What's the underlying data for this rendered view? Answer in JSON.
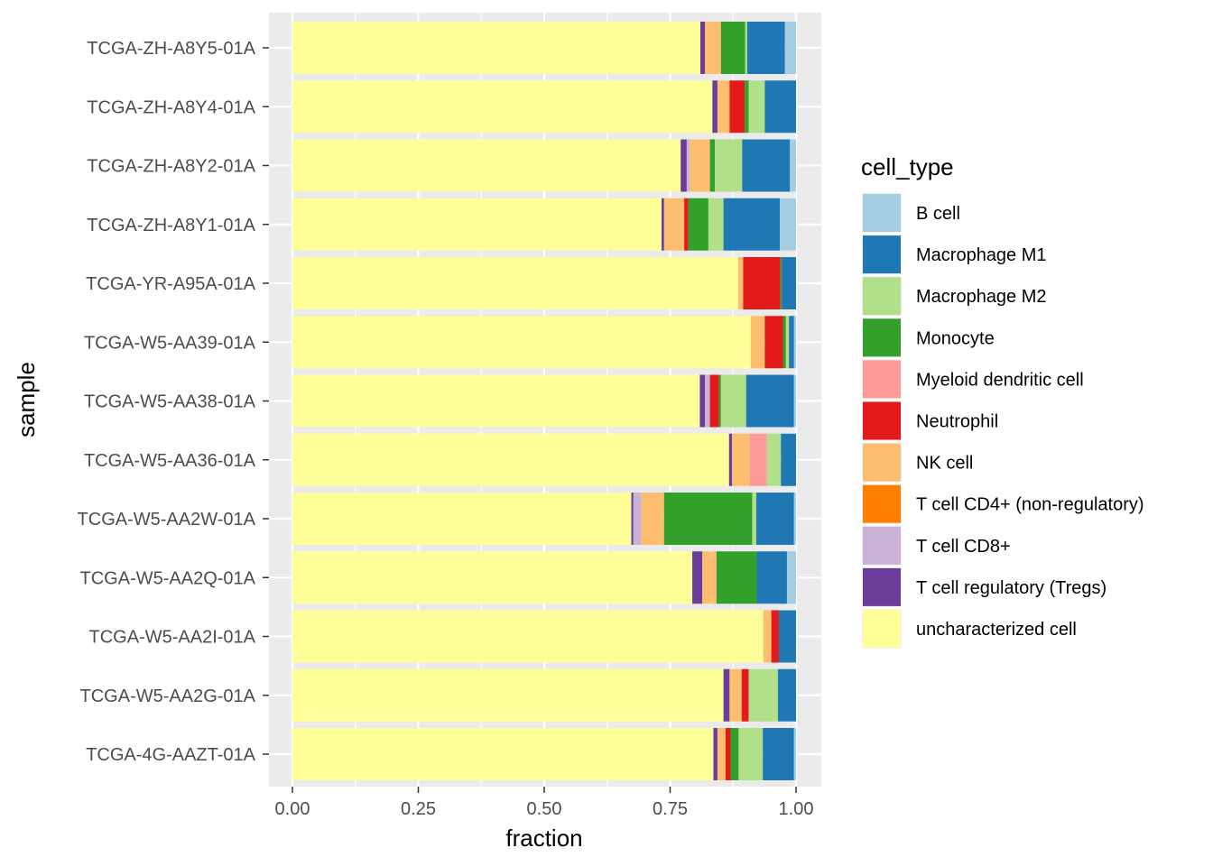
{
  "chart_data": {
    "type": "bar",
    "orientation": "horizontal",
    "stacked": true,
    "xlabel": "fraction",
    "ylabel": "sample",
    "xlim": [
      0,
      1
    ],
    "x_ticks": [
      "0.00",
      "0.25",
      "0.50",
      "0.75",
      "1.00"
    ],
    "grid": true,
    "legend_title": "cell_type",
    "legend_position": "right",
    "categories": [
      "TCGA-ZH-A8Y5-01A",
      "TCGA-ZH-A8Y4-01A",
      "TCGA-ZH-A8Y2-01A",
      "TCGA-ZH-A8Y1-01A",
      "TCGA-YR-A95A-01A",
      "TCGA-W5-AA39-01A",
      "TCGA-W5-AA38-01A",
      "TCGA-W5-AA36-01A",
      "TCGA-W5-AA2W-01A",
      "TCGA-W5-AA2Q-01A",
      "TCGA-W5-AA2I-01A",
      "TCGA-W5-AA2G-01A",
      "TCGA-4G-AAZT-01A"
    ],
    "series": [
      {
        "name": "B cell",
        "color": "#A6CEE3",
        "values": [
          0.022,
          0.0,
          0.012,
          0.032,
          0.0,
          0.004,
          0.004,
          0.0,
          0.004,
          0.018,
          0.0,
          0.0,
          0.004
        ]
      },
      {
        "name": "Macrophage M1",
        "color": "#1F78B4",
        "values": [
          0.075,
          0.062,
          0.095,
          0.112,
          0.028,
          0.01,
          0.095,
          0.03,
          0.075,
          0.06,
          0.034,
          0.036,
          0.062
        ]
      },
      {
        "name": "Macrophage M2",
        "color": "#B2DF8A",
        "values": [
          0.004,
          0.032,
          0.054,
          0.03,
          0.0,
          0.006,
          0.05,
          0.028,
          0.008,
          0.0,
          0.0,
          0.058,
          0.048
        ]
      },
      {
        "name": "Monocyte",
        "color": "#33A02C",
        "values": [
          0.048,
          0.008,
          0.01,
          0.04,
          0.003,
          0.006,
          0.004,
          0.0,
          0.175,
          0.08,
          0.0,
          0.0,
          0.016
        ]
      },
      {
        "name": "Myeloid dendritic cell",
        "color": "#FB9A99",
        "values": [
          0.0,
          0.0,
          0.0,
          0.0,
          0.0,
          0.0,
          0.0,
          0.034,
          0.0,
          0.0,
          0.0,
          0.0,
          0.0
        ]
      },
      {
        "name": "Neutrophil",
        "color": "#E31A1C",
        "values": [
          0.0,
          0.03,
          0.0,
          0.008,
          0.074,
          0.036,
          0.018,
          0.0,
          0.0,
          0.0,
          0.015,
          0.014,
          0.01
        ]
      },
      {
        "name": "NK cell",
        "color": "#FDBF6F",
        "values": [
          0.032,
          0.024,
          0.04,
          0.04,
          0.01,
          0.028,
          0.0,
          0.035,
          0.045,
          0.028,
          0.016,
          0.024,
          0.016
        ]
      },
      {
        "name": "T cell CD4+ (non-regulatory)",
        "color": "#FF7F00",
        "values": [
          0.0,
          0.0,
          0.0,
          0.0,
          0.0,
          0.0,
          0.0,
          0.0,
          0.0,
          0.0,
          0.0,
          0.0,
          0.0
        ]
      },
      {
        "name": "T cell CD8+",
        "color": "#CAB2D6",
        "values": [
          0.0,
          0.0,
          0.006,
          0.0,
          0.0,
          0.0,
          0.01,
          0.0,
          0.016,
          0.0,
          0.0,
          0.0,
          0.0
        ]
      },
      {
        "name": "T cell regulatory (Tregs)",
        "color": "#6A3D9A",
        "values": [
          0.009,
          0.01,
          0.012,
          0.005,
          0.0,
          0.0,
          0.01,
          0.006,
          0.004,
          0.02,
          0.0,
          0.012,
          0.008
        ]
      },
      {
        "name": "uncharacterized cell",
        "color": "#FFFF99",
        "values": [
          0.81,
          0.834,
          0.771,
          0.733,
          0.885,
          0.91,
          0.809,
          0.867,
          0.673,
          0.794,
          0.935,
          0.856,
          0.836
        ]
      }
    ]
  }
}
